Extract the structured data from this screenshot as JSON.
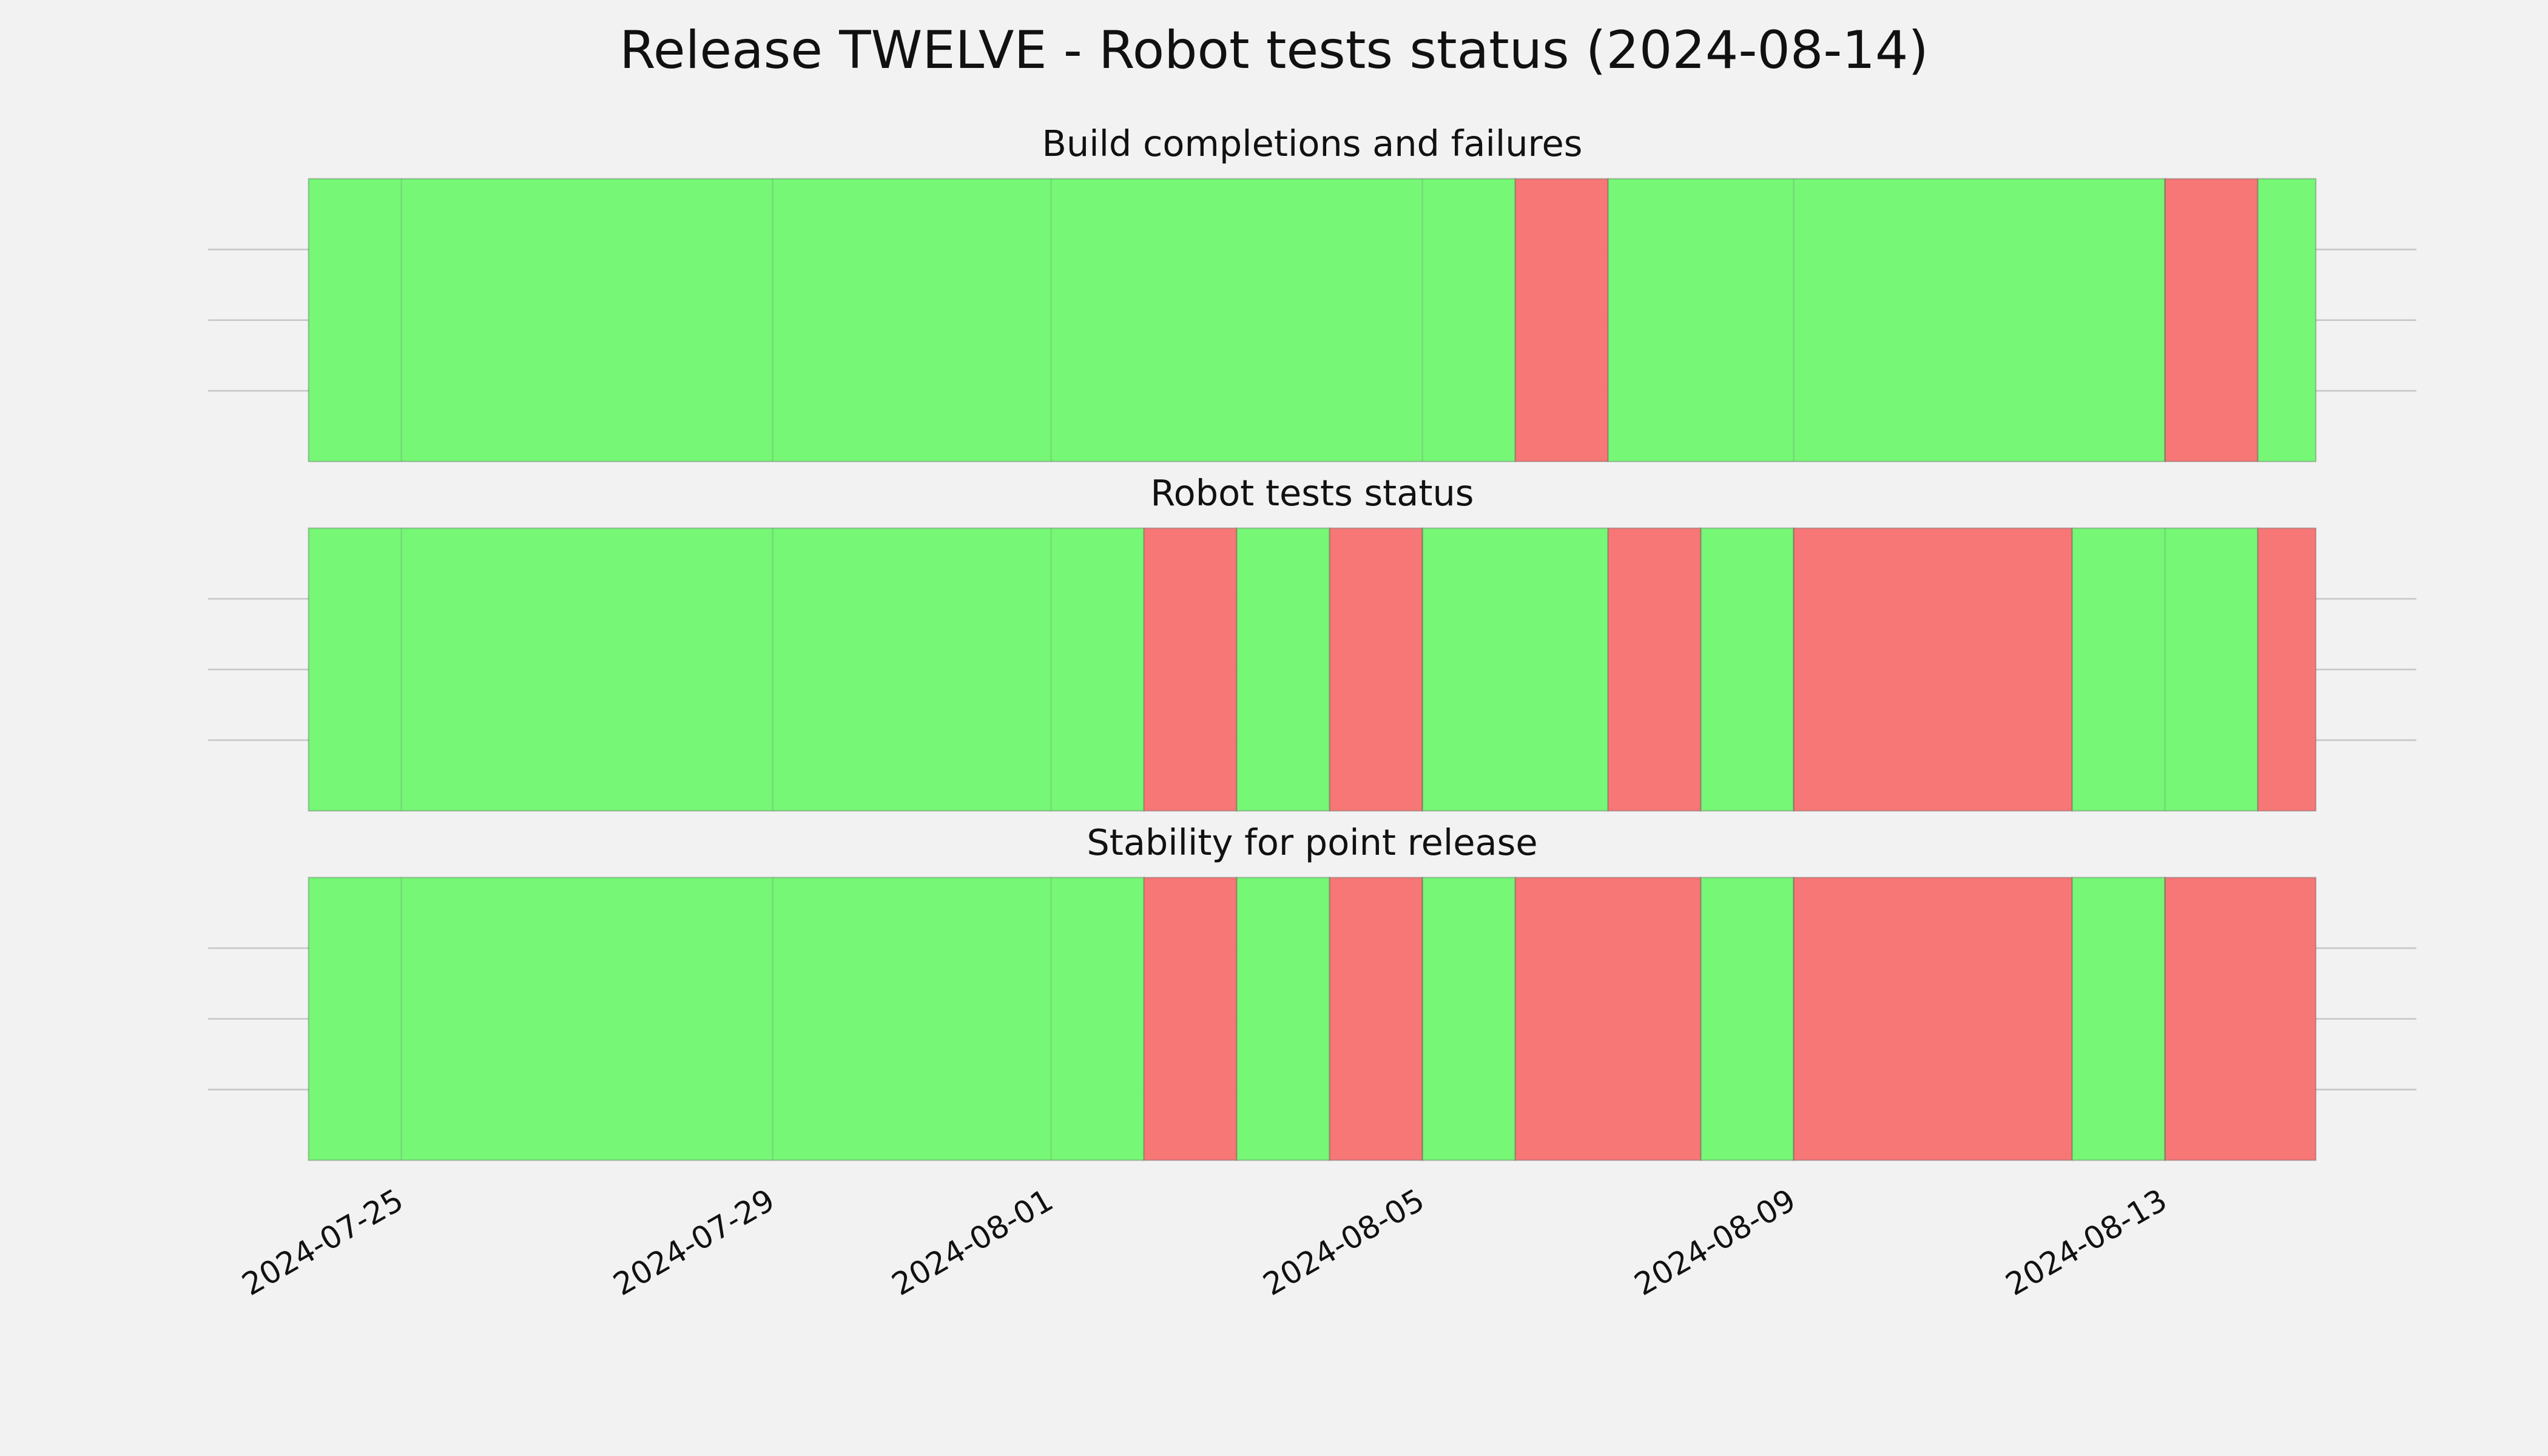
{
  "title": "Release TWELVE - Robot tests status (2024-08-14)",
  "chart_data": [
    {
      "type": "timeline",
      "title": "Build completions and failures",
      "x": [
        "2024-07-24",
        "2024-08-06",
        "2024-08-07",
        "2024-08-13",
        "2024-08-14",
        "2024-08-14T15:00"
      ],
      "colors": [
        "#76f776",
        "#f77676",
        "#76f776",
        "#f77676",
        "#76f776"
      ],
      "xlim": [
        "2024-07-22T22:00",
        "2024-08-15T17:00"
      ],
      "xticks": [
        "2024-07-25",
        "2024-07-29",
        "2024-08-01",
        "2024-08-05",
        "2024-08-09",
        "2024-08-13"
      ],
      "ylim": [
        0,
        1
      ],
      "yticks": [
        0.25,
        0.5,
        0.75
      ],
      "grid": true
    },
    {
      "type": "timeline",
      "title": "Robot tests status",
      "x": [
        "2024-07-24",
        "2024-08-02",
        "2024-08-03",
        "2024-08-04",
        "2024-08-05",
        "2024-08-07",
        "2024-08-08",
        "2024-08-09",
        "2024-08-12",
        "2024-08-14",
        "2024-08-14T15:00"
      ],
      "colors": [
        "#76f776",
        "#f77676",
        "#76f776",
        "#f77676",
        "#76f776",
        "#f77676",
        "#76f776",
        "#f77676",
        "#76f776",
        "#f77676"
      ],
      "xlim": [
        "2024-07-22T22:00",
        "2024-08-15T17:00"
      ],
      "xticks": [
        "2024-07-25",
        "2024-07-29",
        "2024-08-01",
        "2024-08-05",
        "2024-08-09",
        "2024-08-13"
      ],
      "ylim": [
        0,
        1
      ],
      "yticks": [
        0.25,
        0.5,
        0.75
      ],
      "grid": true
    },
    {
      "type": "timeline",
      "title": "Stability for point release",
      "x": [
        "2024-07-24",
        "2024-08-02",
        "2024-08-03",
        "2024-08-04",
        "2024-08-05",
        "2024-08-06",
        "2024-08-08",
        "2024-08-09",
        "2024-08-12",
        "2024-08-13",
        "2024-08-14T15:00"
      ],
      "colors": [
        "#76f776",
        "#f77676",
        "#76f776",
        "#f77676",
        "#76f776",
        "#f77676",
        "#76f776",
        "#f77676",
        "#76f776",
        "#f77676"
      ],
      "xlim": [
        "2024-07-22T22:00",
        "2024-08-15T17:00"
      ],
      "xticks": [
        "2024-07-25",
        "2024-07-29",
        "2024-08-01",
        "2024-08-05",
        "2024-08-09",
        "2024-08-13"
      ],
      "ylim": [
        0,
        1
      ],
      "yticks": [
        0.25,
        0.5,
        0.75
      ],
      "grid": true
    }
  ]
}
